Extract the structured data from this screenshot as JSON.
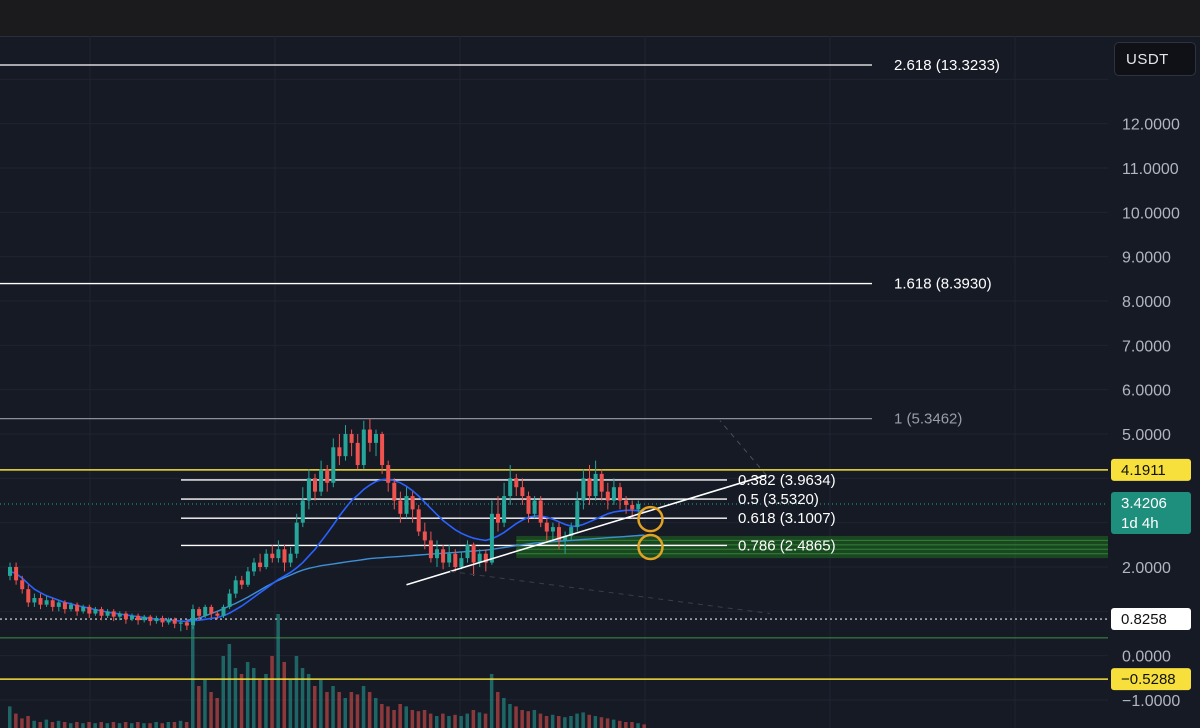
{
  "currency": "USDT",
  "colors": {
    "background": "#161a25",
    "grid": "#1f2431",
    "bull": "#26a69a",
    "bear": "#ef5350",
    "ma": "#2962ff",
    "ma_long": "#3d8fd6",
    "yellow_line": "#f7e03c",
    "circle": "#e2a325",
    "zone": "#1f6b1f"
  },
  "chart_data": {
    "type": "candlestick",
    "y_ticks": [
      "12.0000",
      "11.0000",
      "10.0000",
      "9.0000",
      "8.0000",
      "7.0000",
      "6.0000",
      "5.0000",
      "2.0000",
      "0.0000",
      "−1.0000"
    ],
    "ylim": [
      -1.2,
      13.7
    ],
    "fib_levels": [
      {
        "ratio": "2.618",
        "value": 13.3233,
        "label": "2.618 (13.3233)"
      },
      {
        "ratio": "1.618",
        "value": 8.393,
        "label": "1.618 (8.3930)"
      },
      {
        "ratio": "1",
        "value": 5.3462,
        "label": "1 (5.3462)"
      },
      {
        "ratio": "0.382",
        "value": 3.9634,
        "label": "0.382 (3.9634)"
      },
      {
        "ratio": "0.5",
        "value": 3.532,
        "label": "0.5 (3.5320)"
      },
      {
        "ratio": "0.618",
        "value": 3.1007,
        "label": "0.618 (3.1007)"
      },
      {
        "ratio": "0.786",
        "value": 2.4865,
        "label": "0.786 (2.4865)"
      }
    ],
    "price_badges": [
      {
        "label": "4.1911",
        "value": 4.1911,
        "style": "yellow"
      },
      {
        "label": "3.4206",
        "sub": "1d 4h",
        "value": 3.4206,
        "style": "green"
      },
      {
        "label": "0.8258",
        "value": 0.8258,
        "style": "white"
      },
      {
        "label": "−0.5288",
        "value": -0.5288,
        "style": "yellow"
      }
    ],
    "horizontal_lines": [
      {
        "value": 4.1911,
        "style": "yellow"
      },
      {
        "value": 0.8258,
        "style": "dotted-white"
      },
      {
        "value": 0.4,
        "style": "green"
      },
      {
        "value": -0.5288,
        "style": "yellow"
      }
    ],
    "trendline": {
      "from": [
        65,
        1.6
      ],
      "to": [
        124,
        4.07
      ]
    },
    "support_zone": {
      "from_x": 83,
      "low": 2.2,
      "high": 2.7
    },
    "circles": [
      {
        "x": 105,
        "value": 3.08
      },
      {
        "x": 105,
        "value": 2.45
      }
    ],
    "candles": [
      [
        1.8,
        2.0,
        1.7,
        2.1
      ],
      [
        2.0,
        1.7,
        1.6,
        2.1
      ],
      [
        1.7,
        1.5,
        1.4,
        1.8
      ],
      [
        1.5,
        1.2,
        1.1,
        1.6
      ],
      [
        1.2,
        1.3,
        1.1,
        1.4
      ],
      [
        1.3,
        1.15,
        1.05,
        1.4
      ],
      [
        1.15,
        1.25,
        1.1,
        1.35
      ],
      [
        1.25,
        1.1,
        1.0,
        1.3
      ],
      [
        1.1,
        1.2,
        1.0,
        1.25
      ],
      [
        1.2,
        1.05,
        0.95,
        1.25
      ],
      [
        1.05,
        1.15,
        1.0,
        1.2
      ],
      [
        1.15,
        1.0,
        0.9,
        1.2
      ],
      [
        1.0,
        1.1,
        0.95,
        1.15
      ],
      [
        1.1,
        0.95,
        0.85,
        1.15
      ],
      [
        0.95,
        1.05,
        0.9,
        1.1
      ],
      [
        1.05,
        0.9,
        0.8,
        1.1
      ],
      [
        0.9,
        1.0,
        0.85,
        1.05
      ],
      [
        1.0,
        0.88,
        0.78,
        1.05
      ],
      [
        0.88,
        0.95,
        0.8,
        1.0
      ],
      [
        0.95,
        0.82,
        0.72,
        1.0
      ],
      [
        0.82,
        0.9,
        0.78,
        0.95
      ],
      [
        0.9,
        0.8,
        0.7,
        0.95
      ],
      [
        0.8,
        0.88,
        0.75,
        0.92
      ],
      [
        0.88,
        0.78,
        0.68,
        0.92
      ],
      [
        0.78,
        0.85,
        0.72,
        0.9
      ],
      [
        0.85,
        0.75,
        0.65,
        0.9
      ],
      [
        0.75,
        0.82,
        0.7,
        0.86
      ],
      [
        0.82,
        0.72,
        0.62,
        0.86
      ],
      [
        0.72,
        0.75,
        0.55,
        0.8
      ],
      [
        0.75,
        0.68,
        0.58,
        0.8
      ],
      [
        0.68,
        1.05,
        0.6,
        1.15
      ],
      [
        1.05,
        0.9,
        0.8,
        1.1
      ],
      [
        0.9,
        1.1,
        0.85,
        1.15
      ],
      [
        1.1,
        0.95,
        0.85,
        1.15
      ],
      [
        0.95,
        0.9,
        0.82,
        1.0
      ],
      [
        0.9,
        1.1,
        0.85,
        1.15
      ],
      [
        1.1,
        1.4,
        1.05,
        1.5
      ],
      [
        1.4,
        1.7,
        1.3,
        1.8
      ],
      [
        1.7,
        1.6,
        1.5,
        1.8
      ],
      [
        1.6,
        1.9,
        1.55,
        2.0
      ],
      [
        1.9,
        2.1,
        1.8,
        2.2
      ],
      [
        2.1,
        2.0,
        1.9,
        2.3
      ],
      [
        2.0,
        2.3,
        1.95,
        2.4
      ],
      [
        2.3,
        2.2,
        2.1,
        2.5
      ],
      [
        2.2,
        2.4,
        2.1,
        2.6
      ],
      [
        2.4,
        2.1,
        1.9,
        2.5
      ],
      [
        2.1,
        2.3,
        2.0,
        2.45
      ],
      [
        2.3,
        3.0,
        2.2,
        3.2
      ],
      [
        3.0,
        3.5,
        2.9,
        3.8
      ],
      [
        3.5,
        4.0,
        3.3,
        4.2
      ],
      [
        4.0,
        3.7,
        3.5,
        4.1
      ],
      [
        3.7,
        4.2,
        3.6,
        4.4
      ],
      [
        4.2,
        3.9,
        3.7,
        4.3
      ],
      [
        3.9,
        4.7,
        3.8,
        4.9
      ],
      [
        4.7,
        4.5,
        4.3,
        5.0
      ],
      [
        4.5,
        5.0,
        4.4,
        5.2
      ],
      [
        5.0,
        4.8,
        4.5,
        5.1
      ],
      [
        4.8,
        4.3,
        4.2,
        5.0
      ],
      [
        4.3,
        5.1,
        4.2,
        5.3
      ],
      [
        5.1,
        4.8,
        4.6,
        5.35
      ],
      [
        4.8,
        5.0,
        4.5,
        5.1
      ],
      [
        5.0,
        4.3,
        4.1,
        5.05
      ],
      [
        4.3,
        3.9,
        3.7,
        4.4
      ],
      [
        3.9,
        3.5,
        3.3,
        4.0
      ],
      [
        3.5,
        3.2,
        3.0,
        3.7
      ],
      [
        3.2,
        3.6,
        3.1,
        3.8
      ],
      [
        3.6,
        3.3,
        3.0,
        3.7
      ],
      [
        3.3,
        2.8,
        2.7,
        3.4
      ],
      [
        2.8,
        2.6,
        2.4,
        3.0
      ],
      [
        2.6,
        2.2,
        2.1,
        2.8
      ],
      [
        2.2,
        2.4,
        2.0,
        2.6
      ],
      [
        2.4,
        2.1,
        1.95,
        2.5
      ],
      [
        2.1,
        2.3,
        2.0,
        2.5
      ],
      [
        2.3,
        2.0,
        1.9,
        2.4
      ],
      [
        2.0,
        2.2,
        1.95,
        2.35
      ],
      [
        2.2,
        2.5,
        2.1,
        2.6
      ],
      [
        2.5,
        2.1,
        1.8,
        2.55
      ],
      [
        2.1,
        2.3,
        2.0,
        2.4
      ],
      [
        2.3,
        2.1,
        1.9,
        2.4
      ],
      [
        2.1,
        3.2,
        2.05,
        3.5
      ],
      [
        3.2,
        3.0,
        2.8,
        3.6
      ],
      [
        3.0,
        3.6,
        2.9,
        3.9
      ],
      [
        3.6,
        4.0,
        3.4,
        4.3
      ],
      [
        4.0,
        3.8,
        3.6,
        4.1
      ],
      [
        3.8,
        3.6,
        3.4,
        4.0
      ],
      [
        3.6,
        3.2,
        3.0,
        3.7
      ],
      [
        3.2,
        3.5,
        3.1,
        3.6
      ],
      [
        3.5,
        3.0,
        2.9,
        3.6
      ],
      [
        3.0,
        2.8,
        2.6,
        3.1
      ],
      [
        2.8,
        2.9,
        2.6,
        3.0
      ],
      [
        2.9,
        2.6,
        2.4,
        3.0
      ],
      [
        2.6,
        2.7,
        2.3,
        2.8
      ],
      [
        2.7,
        2.9,
        2.6,
        3.0
      ],
      [
        2.9,
        3.5,
        2.8,
        3.7
      ],
      [
        3.5,
        4.0,
        3.3,
        4.2
      ],
      [
        4.0,
        3.6,
        3.4,
        4.3
      ],
      [
        3.6,
        4.1,
        3.5,
        4.4
      ],
      [
        4.1,
        3.7,
        3.5,
        4.2
      ],
      [
        3.7,
        3.5,
        3.3,
        3.9
      ],
      [
        3.5,
        3.8,
        3.4,
        4.0
      ],
      [
        3.8,
        3.5,
        3.3,
        3.9
      ],
      [
        3.5,
        3.4,
        3.2,
        3.6
      ],
      [
        3.4,
        3.3,
        3.1,
        3.5
      ],
      [
        3.3,
        3.42,
        3.2,
        3.5
      ]
    ],
    "volumes": [
      0.18,
      0.12,
      0.08,
      0.1,
      0.06,
      0.05,
      0.07,
      0.05,
      0.06,
      0.05,
      0.04,
      0.05,
      0.04,
      0.05,
      0.04,
      0.05,
      0.04,
      0.05,
      0.04,
      0.05,
      0.04,
      0.05,
      0.04,
      0.04,
      0.05,
      0.04,
      0.05,
      0.05,
      0.06,
      0.05,
      0.85,
      0.35,
      0.4,
      0.3,
      0.25,
      0.6,
      0.7,
      0.5,
      0.45,
      0.55,
      0.5,
      0.4,
      0.45,
      0.6,
      0.95,
      0.55,
      0.4,
      0.6,
      0.5,
      0.45,
      0.35,
      0.4,
      0.3,
      0.35,
      0.3,
      0.25,
      0.3,
      0.28,
      0.35,
      0.3,
      0.25,
      0.2,
      0.18,
      0.15,
      0.2,
      0.18,
      0.15,
      0.14,
      0.15,
      0.12,
      0.1,
      0.12,
      0.1,
      0.11,
      0.1,
      0.12,
      0.15,
      0.13,
      0.12,
      0.45,
      0.3,
      0.25,
      0.2,
      0.18,
      0.15,
      0.14,
      0.15,
      0.12,
      0.1,
      0.11,
      0.1,
      0.09,
      0.1,
      0.12,
      0.13,
      0.11,
      0.1,
      0.09,
      0.08,
      0.07,
      0.06,
      0.05,
      0.05,
      0.04,
      0.03
    ],
    "ma_fast": [
      1.9,
      1.85,
      1.75,
      1.62,
      1.5,
      1.42,
      1.35,
      1.3,
      1.25,
      1.2,
      1.17,
      1.13,
      1.1,
      1.07,
      1.04,
      1.01,
      0.98,
      0.96,
      0.94,
      0.92,
      0.9,
      0.88,
      0.86,
      0.84,
      0.82,
      0.81,
      0.8,
      0.79,
      0.78,
      0.77,
      0.79,
      0.8,
      0.82,
      0.84,
      0.86,
      0.9,
      0.96,
      1.04,
      1.12,
      1.22,
      1.32,
      1.42,
      1.52,
      1.62,
      1.72,
      1.8,
      1.88,
      1.98,
      2.1,
      2.25,
      2.4,
      2.58,
      2.76,
      2.95,
      3.15,
      3.33,
      3.5,
      3.62,
      3.75,
      3.85,
      3.93,
      3.97,
      3.98,
      3.95,
      3.9,
      3.82,
      3.72,
      3.6,
      3.46,
      3.32,
      3.18,
      3.05,
      2.94,
      2.84,
      2.76,
      2.7,
      2.65,
      2.62,
      2.6,
      2.64,
      2.7,
      2.78,
      2.88,
      2.98,
      3.06,
      3.12,
      3.15,
      3.15,
      3.12,
      3.08,
      3.02,
      2.96,
      2.92,
      2.92,
      2.96,
      3.02,
      3.08,
      3.14,
      3.2,
      3.24,
      3.26,
      3.28,
      3.28,
      3.27,
      3.26
    ],
    "ma_slow": [
      null,
      null,
      null,
      null,
      null,
      null,
      null,
      null,
      null,
      null,
      null,
      null,
      null,
      null,
      null,
      null,
      null,
      null,
      null,
      null,
      null,
      null,
      null,
      null,
      null,
      null,
      null,
      null,
      null,
      0.8,
      0.82,
      0.85,
      0.9,
      0.95,
      1.0,
      1.06,
      1.12,
      1.18,
      1.25,
      1.32,
      1.4,
      1.48,
      1.56,
      1.63,
      1.7,
      1.76,
      1.82,
      1.88,
      1.93,
      1.97,
      2.0,
      2.03,
      2.05,
      2.07,
      2.09,
      2.11,
      2.13,
      2.15,
      2.17,
      2.19,
      2.2,
      2.21,
      2.22,
      2.23,
      2.24,
      2.25,
      2.26,
      2.27,
      2.28,
      2.29,
      2.3,
      2.31,
      2.32,
      2.33,
      2.34,
      2.35,
      2.36,
      2.37,
      2.38,
      2.4,
      2.42,
      2.44,
      2.46,
      2.48,
      2.5,
      2.52,
      2.54,
      2.55,
      2.56,
      2.57,
      2.58,
      2.59,
      2.6,
      2.61,
      2.62,
      2.63,
      2.64,
      2.65,
      2.66,
      2.67,
      2.68,
      2.69,
      2.7,
      2.71,
      2.72
    ]
  }
}
